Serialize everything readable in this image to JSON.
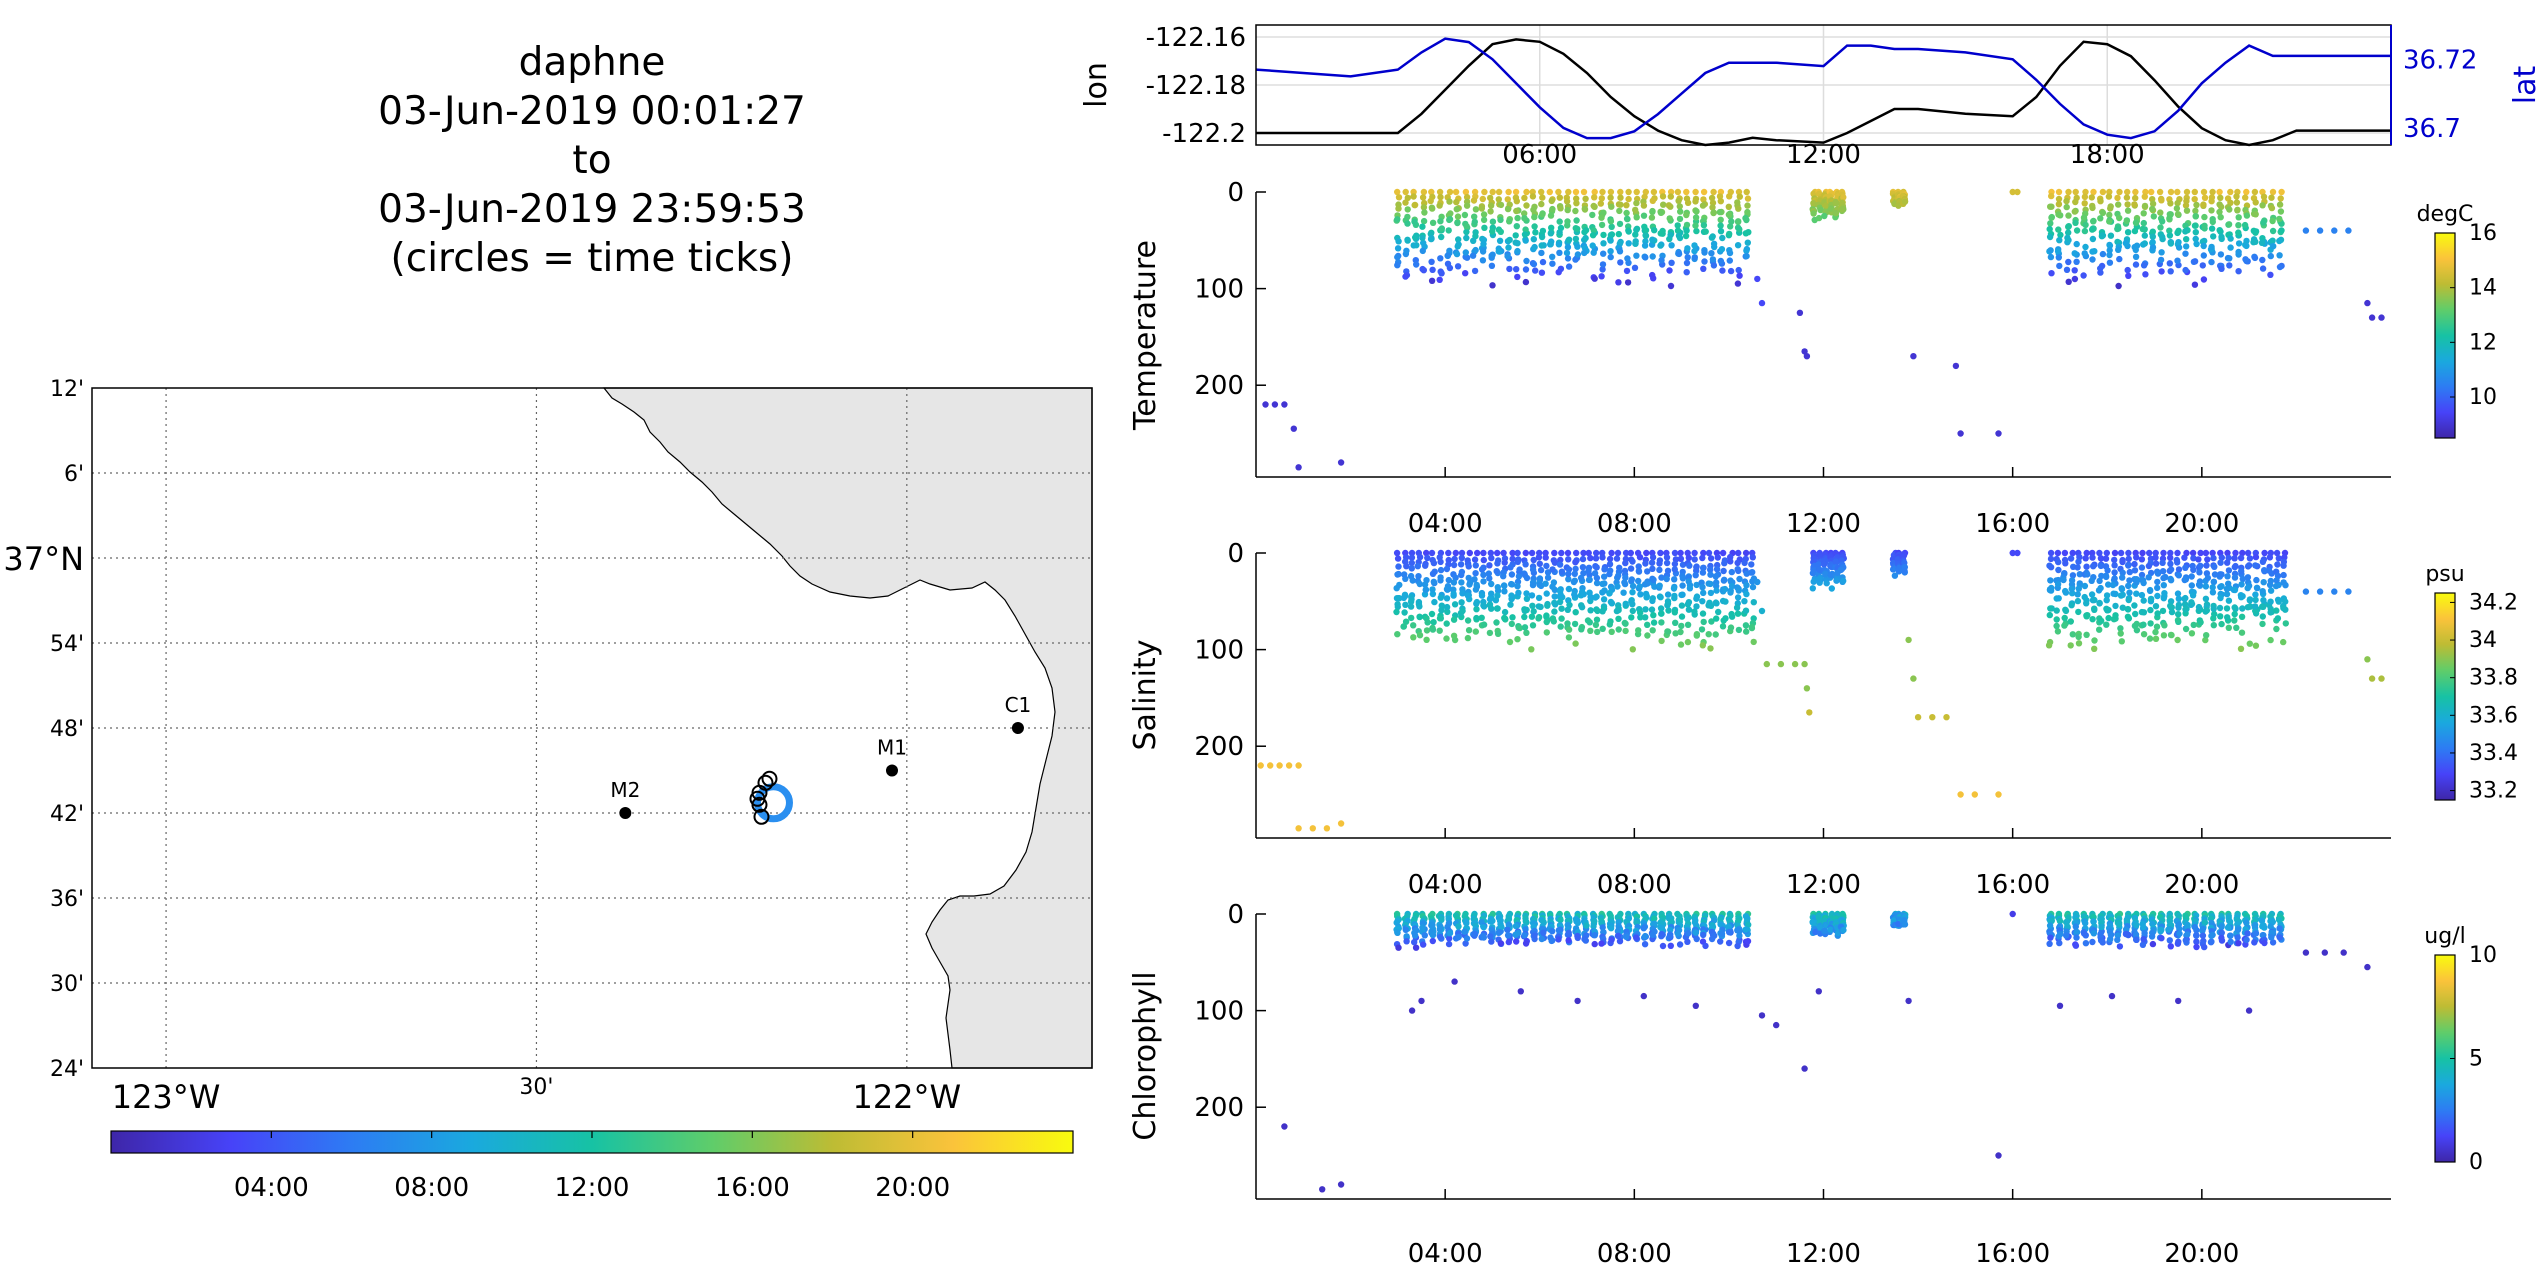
{
  "title": {
    "lines": [
      "daphne",
      "03-Jun-2019 00:01:27",
      "to",
      "03-Jun-2019 23:59:53",
      "(circles = time ticks)"
    ]
  },
  "colors": {
    "lon_line": "#000000",
    "lat_line": "#0000cc",
    "land": "#e6e6e6",
    "track": "#2a8ff0",
    "colormap": [
      "#3e26a8",
      "#4743f8",
      "#2d7cf3",
      "#1aa9de",
      "#17c2a4",
      "#5fcd6a",
      "#bdbc34",
      "#fac33b",
      "#f9fb0e"
    ]
  },
  "icons": {
    "station_marker": "filled-circle-dot",
    "time_tick_marker": "open-circle"
  },
  "chart_data": [
    {
      "type": "map",
      "lon_ticks": [
        {
          "value": -123.0,
          "label": "123°W",
          "major": true
        },
        {
          "value": -122.5,
          "label": "30'",
          "major": false
        },
        {
          "value": -122.0,
          "label": "122°W",
          "major": true
        }
      ],
      "lat_ticks": [
        {
          "value": 37.2,
          "label": "12'"
        },
        {
          "value": 37.1,
          "label": "6'"
        },
        {
          "value": 37.0,
          "label": "37°N",
          "major": true
        },
        {
          "value": 36.9,
          "label": "54'"
        },
        {
          "value": 36.8,
          "label": "48'"
        },
        {
          "value": 36.7,
          "label": "42'"
        },
        {
          "value": 36.6,
          "label": "36'"
        },
        {
          "value": 36.5,
          "label": "30'"
        },
        {
          "value": 36.4,
          "label": "24'"
        }
      ],
      "xlim": [
        -123.1,
        -121.75
      ],
      "ylim": [
        36.4,
        37.2
      ],
      "grid": true,
      "stations": [
        {
          "name": "M2",
          "lon": -122.38,
          "lat": 36.7
        },
        {
          "name": "M1",
          "lon": -122.02,
          "lat": 36.75
        },
        {
          "name": "C1",
          "lon": -121.85,
          "lat": 36.8
        }
      ],
      "track_center": {
        "lon": -122.18,
        "lat": 36.712
      },
      "colorbar": {
        "ticks": [
          "04:00",
          "08:00",
          "12:00",
          "16:00",
          "20:00"
        ],
        "range_hours": [
          0,
          24
        ]
      }
    },
    {
      "type": "line",
      "ylabel_left": "lon",
      "ylabel_right": "lat",
      "left_ticks": [
        "-122.16",
        "-122.18",
        "-122.2"
      ],
      "right_ticks": [
        "36.72",
        "36.7"
      ],
      "x_ticks": [
        "06:00",
        "12:00",
        "18:00"
      ],
      "xlim_hours": [
        0,
        24
      ],
      "left_ylim": [
        -122.205,
        -122.155
      ],
      "right_ylim": [
        36.695,
        36.73
      ],
      "grid": true,
      "series": [
        {
          "name": "lon",
          "color": "#000000",
          "x": [
            0,
            1,
            2,
            3,
            3.5,
            4,
            4.5,
            5,
            5.5,
            6,
            6.5,
            7,
            7.5,
            8,
            8.5,
            9,
            9.5,
            10,
            10.5,
            11,
            12,
            12.5,
            13,
            13.5,
            14,
            15,
            16,
            16.5,
            17,
            17.5,
            18,
            18.5,
            19,
            19.5,
            20,
            20.5,
            21,
            21.5,
            22,
            23,
            24
          ],
          "y": [
            -122.2,
            -122.2,
            -122.2,
            -122.2,
            -122.192,
            -122.182,
            -122.172,
            -122.163,
            -122.161,
            -122.162,
            -122.167,
            -122.175,
            -122.185,
            -122.193,
            -122.199,
            -122.203,
            -122.205,
            -122.204,
            -122.202,
            -122.203,
            -122.204,
            -122.2,
            -122.195,
            -122.19,
            -122.19,
            -122.192,
            -122.193,
            -122.185,
            -122.172,
            -122.162,
            -122.163,
            -122.168,
            -122.178,
            -122.189,
            -122.198,
            -122.203,
            -122.205,
            -122.203,
            -122.199,
            -122.199,
            -122.199
          ]
        },
        {
          "name": "lat",
          "color": "#0000cc",
          "x": [
            0,
            1,
            2,
            3,
            3.5,
            4,
            4.5,
            5,
            5.5,
            6,
            6.5,
            7,
            7.5,
            8,
            8.5,
            9,
            9.5,
            10,
            11,
            12,
            12.5,
            13,
            13.5,
            14,
            15,
            16,
            16.5,
            17,
            17.5,
            18,
            18.5,
            19,
            19.5,
            20,
            20.5,
            21,
            21.5,
            22,
            23,
            24
          ],
          "y": [
            36.717,
            36.716,
            36.715,
            36.717,
            36.722,
            36.726,
            36.725,
            36.72,
            36.713,
            36.706,
            36.7,
            36.697,
            36.697,
            36.699,
            36.704,
            36.71,
            36.716,
            36.719,
            36.719,
            36.718,
            36.724,
            36.724,
            36.723,
            36.723,
            36.722,
            36.72,
            36.714,
            36.707,
            36.701,
            36.698,
            36.697,
            36.699,
            36.705,
            36.713,
            36.719,
            36.724,
            36.721,
            36.721,
            36.721,
            36.721
          ]
        }
      ]
    },
    {
      "type": "scatter",
      "ylabel": "Temperature",
      "y_ticks": [
        "0",
        "100",
        "200"
      ],
      "ylim": [
        0,
        295
      ],
      "y_reversed": true,
      "x_ticks": [
        "04:00",
        "08:00",
        "12:00",
        "16:00",
        "20:00"
      ],
      "xlim_hours": [
        0,
        24
      ],
      "colorbar": {
        "label": "degC",
        "ticks": [
          "16",
          "14",
          "12",
          "10"
        ],
        "range": [
          8.5,
          16
        ]
      },
      "profiles": [
        {
          "start": 3.0,
          "end": 10.5,
          "step": 0.18,
          "max_depth": 100,
          "surface": 15
        },
        {
          "start": 11.8,
          "end": 12.4,
          "step": 0.12,
          "max_depth": 30,
          "surface": 15
        },
        {
          "start": 13.5,
          "end": 13.7,
          "step": 0.1,
          "max_depth": 15,
          "surface": 15
        },
        {
          "start": 16.8,
          "end": 21.8,
          "step": 0.18,
          "max_depth": 100,
          "surface": 15
        }
      ],
      "extra_points": [
        {
          "x": 0.2,
          "y": 220,
          "v": 9
        },
        {
          "x": 0.4,
          "y": 220,
          "v": 9
        },
        {
          "x": 0.6,
          "y": 220,
          "v": 9
        },
        {
          "x": 0.8,
          "y": 245,
          "v": 9
        },
        {
          "x": 0.9,
          "y": 285,
          "v": 9
        },
        {
          "x": 1.8,
          "y": 280,
          "v": 9
        },
        {
          "x": 10.6,
          "y": 90,
          "v": 9.5
        },
        {
          "x": 10.7,
          "y": 115,
          "v": 9.5
        },
        {
          "x": 11.5,
          "y": 125,
          "v": 9
        },
        {
          "x": 11.6,
          "y": 165,
          "v": 9
        },
        {
          "x": 11.65,
          "y": 170,
          "v": 9
        },
        {
          "x": 13.9,
          "y": 170,
          "v": 9
        },
        {
          "x": 14.8,
          "y": 180,
          "v": 9
        },
        {
          "x": 14.9,
          "y": 250,
          "v": 9
        },
        {
          "x": 15.7,
          "y": 250,
          "v": 9
        },
        {
          "x": 16.0,
          "y": 0,
          "v": 14.5
        },
        {
          "x": 16.1,
          "y": 0,
          "v": 14.5
        },
        {
          "x": 22.2,
          "y": 40,
          "v": 10.5
        },
        {
          "x": 22.5,
          "y": 40,
          "v": 10.5
        },
        {
          "x": 22.8,
          "y": 40,
          "v": 10.5
        },
        {
          "x": 23.1,
          "y": 40,
          "v": 10.5
        },
        {
          "x": 23.5,
          "y": 115,
          "v": 9
        },
        {
          "x": 23.6,
          "y": 130,
          "v": 9
        },
        {
          "x": 23.8,
          "y": 130,
          "v": 9
        }
      ]
    },
    {
      "type": "scatter",
      "ylabel": "Salinity",
      "y_ticks": [
        "0",
        "100",
        "200"
      ],
      "ylim": [
        0,
        295
      ],
      "y_reversed": true,
      "x_ticks": [
        "04:00",
        "08:00",
        "12:00",
        "16:00",
        "20:00"
      ],
      "xlim_hours": [
        0,
        24
      ],
      "colorbar": {
        "label": "psu",
        "ticks": [
          "34.2",
          "34",
          "33.8",
          "33.6",
          "33.4",
          "33.2"
        ],
        "range": [
          33.15,
          34.25
        ]
      },
      "profiles": [
        {
          "start": 3.0,
          "end": 10.5,
          "step": 0.15,
          "max_depth": 100,
          "surface": 33.3,
          "deep": 33.9
        },
        {
          "start": 11.8,
          "end": 12.4,
          "step": 0.12,
          "max_depth": 40,
          "surface": 33.3,
          "deep": 33.6
        },
        {
          "start": 13.5,
          "end": 13.7,
          "step": 0.1,
          "max_depth": 25,
          "surface": 33.3,
          "deep": 33.5
        },
        {
          "start": 16.8,
          "end": 21.8,
          "step": 0.15,
          "max_depth": 100,
          "surface": 33.3,
          "deep": 33.9
        }
      ],
      "extra_points": [
        {
          "x": 0.1,
          "y": 220,
          "v": 34.1
        },
        {
          "x": 0.3,
          "y": 220,
          "v": 34.1
        },
        {
          "x": 0.5,
          "y": 220,
          "v": 34.1
        },
        {
          "x": 0.7,
          "y": 220,
          "v": 34.1
        },
        {
          "x": 0.9,
          "y": 220,
          "v": 34.1
        },
        {
          "x": 0.9,
          "y": 285,
          "v": 34.1
        },
        {
          "x": 1.2,
          "y": 285,
          "v": 34.1
        },
        {
          "x": 1.5,
          "y": 285,
          "v": 34.1
        },
        {
          "x": 1.8,
          "y": 280,
          "v": 34.1
        },
        {
          "x": 10.6,
          "y": 30,
          "v": 33.5
        },
        {
          "x": 10.7,
          "y": 60,
          "v": 33.6
        },
        {
          "x": 10.8,
          "y": 115,
          "v": 33.9
        },
        {
          "x": 11.1,
          "y": 115,
          "v": 33.9
        },
        {
          "x": 11.4,
          "y": 115,
          "v": 33.9
        },
        {
          "x": 11.6,
          "y": 115,
          "v": 33.9
        },
        {
          "x": 11.65,
          "y": 140,
          "v": 33.9
        },
        {
          "x": 11.7,
          "y": 165,
          "v": 34.0
        },
        {
          "x": 13.8,
          "y": 90,
          "v": 33.9
        },
        {
          "x": 13.9,
          "y": 130,
          "v": 33.9
        },
        {
          "x": 14.0,
          "y": 170,
          "v": 34.0
        },
        {
          "x": 14.3,
          "y": 170,
          "v": 34.0
        },
        {
          "x": 14.6,
          "y": 170,
          "v": 34.0
        },
        {
          "x": 14.9,
          "y": 250,
          "v": 34.1
        },
        {
          "x": 15.2,
          "y": 250,
          "v": 34.1
        },
        {
          "x": 15.7,
          "y": 250,
          "v": 34.1
        },
        {
          "x": 16.0,
          "y": 0,
          "v": 33.3
        },
        {
          "x": 16.1,
          "y": 0,
          "v": 33.3
        },
        {
          "x": 22.2,
          "y": 40,
          "v": 33.45
        },
        {
          "x": 22.5,
          "y": 40,
          "v": 33.45
        },
        {
          "x": 22.8,
          "y": 40,
          "v": 33.45
        },
        {
          "x": 23.1,
          "y": 40,
          "v": 33.45
        },
        {
          "x": 23.5,
          "y": 110,
          "v": 33.9
        },
        {
          "x": 23.6,
          "y": 130,
          "v": 33.95
        },
        {
          "x": 23.8,
          "y": 130,
          "v": 33.95
        }
      ]
    },
    {
      "type": "scatter",
      "ylabel": "Chlorophyll",
      "y_ticks": [
        "0",
        "100",
        "200"
      ],
      "ylim": [
        0,
        295
      ],
      "y_reversed": true,
      "x_ticks": [
        "04:00",
        "08:00",
        "12:00",
        "16:00",
        "20:00"
      ],
      "xlim_hours": [
        0,
        24
      ],
      "colorbar": {
        "label": "ug/l",
        "ticks": [
          "10",
          "5",
          "0"
        ],
        "range": [
          0,
          10
        ]
      },
      "profiles": [
        {
          "start": 3.0,
          "end": 10.5,
          "step": 0.18,
          "max_depth": 35,
          "surface": 4
        },
        {
          "start": 11.8,
          "end": 12.4,
          "step": 0.12,
          "max_depth": 25,
          "surface": 4
        },
        {
          "start": 13.5,
          "end": 13.7,
          "step": 0.1,
          "max_depth": 15,
          "surface": 3
        },
        {
          "start": 16.8,
          "end": 21.8,
          "step": 0.18,
          "max_depth": 35,
          "surface": 4
        }
      ],
      "extra_points": [
        {
          "x": 0.6,
          "y": 220,
          "v": 0.5
        },
        {
          "x": 1.4,
          "y": 285,
          "v": 0.5
        },
        {
          "x": 1.8,
          "y": 280,
          "v": 0.5
        },
        {
          "x": 3.3,
          "y": 100,
          "v": 0.5
        },
        {
          "x": 3.5,
          "y": 90,
          "v": 0.5
        },
        {
          "x": 4.2,
          "y": 70,
          "v": 0.5
        },
        {
          "x": 5.6,
          "y": 80,
          "v": 0.5
        },
        {
          "x": 6.8,
          "y": 90,
          "v": 0.5
        },
        {
          "x": 8.2,
          "y": 85,
          "v": 0.5
        },
        {
          "x": 9.3,
          "y": 95,
          "v": 0.5
        },
        {
          "x": 10.7,
          "y": 105,
          "v": 0.5
        },
        {
          "x": 11.0,
          "y": 115,
          "v": 0.5
        },
        {
          "x": 11.6,
          "y": 160,
          "v": 0.5
        },
        {
          "x": 11.9,
          "y": 80,
          "v": 0.5
        },
        {
          "x": 13.8,
          "y": 90,
          "v": 0.5
        },
        {
          "x": 15.7,
          "y": 250,
          "v": 0.5
        },
        {
          "x": 16.0,
          "y": 0,
          "v": 1
        },
        {
          "x": 17.0,
          "y": 95,
          "v": 0.5
        },
        {
          "x": 18.1,
          "y": 85,
          "v": 0.5
        },
        {
          "x": 19.5,
          "y": 90,
          "v": 0.5
        },
        {
          "x": 21.0,
          "y": 100,
          "v": 0.5
        },
        {
          "x": 22.2,
          "y": 40,
          "v": 0.5
        },
        {
          "x": 22.6,
          "y": 40,
          "v": 0.5
        },
        {
          "x": 23.0,
          "y": 40,
          "v": 0.5
        },
        {
          "x": 23.5,
          "y": 55,
          "v": 0.5
        }
      ]
    }
  ]
}
